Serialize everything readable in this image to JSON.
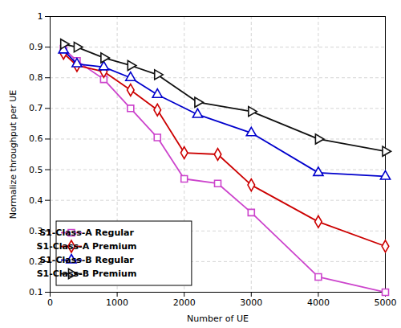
{
  "chart_data": {
    "type": "line",
    "xlabel": "Number of UE",
    "ylabel": "Normalize throughput per UE",
    "xlim": [
      0,
      5000
    ],
    "ylim": [
      0.1,
      1.0
    ],
    "xticks": [
      0,
      1000,
      2000,
      3000,
      4000,
      5000
    ],
    "yticks": [
      0.1,
      0.2,
      0.3,
      0.4,
      0.5,
      0.6,
      0.7,
      0.8,
      0.9,
      1.0
    ],
    "grid": true,
    "legend": "lower left",
    "series": [
      {
        "name": "S1-Class-A Regular",
        "color": "#CC44CC",
        "marker": "square",
        "x": [
          200,
          400,
          800,
          1200,
          1600,
          2000,
          2500,
          3000,
          4000,
          5000
        ],
        "values": [
          0.895,
          0.855,
          0.795,
          0.7,
          0.605,
          0.47,
          0.455,
          0.36,
          0.15,
          0.1
        ]
      },
      {
        "name": "S1-Class-A Premium",
        "color": "#CC0000",
        "marker": "diamond",
        "x": [
          200,
          400,
          800,
          1200,
          1600,
          2000,
          2500,
          3000,
          4000,
          5000
        ],
        "values": [
          0.88,
          0.84,
          0.82,
          0.76,
          0.695,
          0.555,
          0.55,
          0.45,
          0.33,
          0.25
        ]
      },
      {
        "name": "S1-Class-B Regular",
        "color": "#0000CC",
        "marker": "triangle-up",
        "x": [
          200,
          400,
          800,
          1200,
          1600,
          2200,
          3000,
          4000,
          5000
        ],
        "values": [
          0.89,
          0.845,
          0.835,
          0.8,
          0.745,
          0.68,
          0.62,
          0.49,
          0.478
        ]
      },
      {
        "name": "S1-Class-B Premium",
        "color": "#111111",
        "marker": "triangle-right",
        "x": [
          200,
          400,
          800,
          1200,
          1600,
          2200,
          3000,
          4000,
          5000
        ],
        "values": [
          0.91,
          0.9,
          0.865,
          0.84,
          0.81,
          0.72,
          0.69,
          0.6,
          0.56
        ]
      }
    ]
  }
}
